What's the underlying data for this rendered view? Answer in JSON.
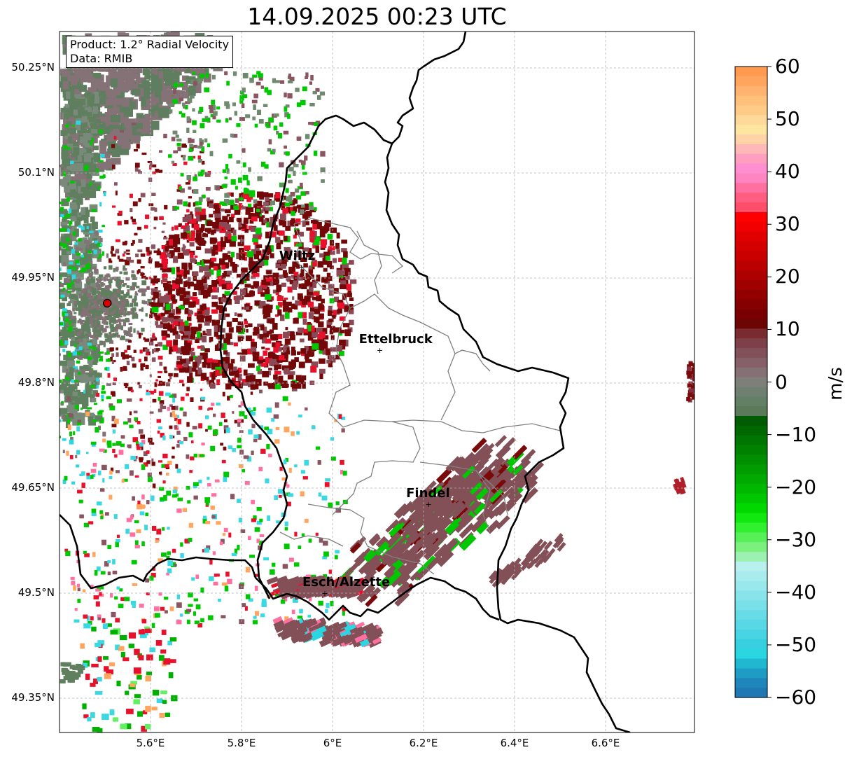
{
  "title": "14.09.2025 00:23 UTC",
  "info": {
    "product": "Product: 1.2° Radial Velocity",
    "data": "Data: RMIB"
  },
  "map": {
    "lat_ticks": [
      "50.25°N",
      "50.1°N",
      "49.95°N",
      "49.8°N",
      "49.65°N",
      "49.5°N",
      "49.35°N"
    ],
    "lon_ticks": [
      "5.6°E",
      "5.8°E",
      "6°E",
      "6.2°E",
      "6.4°E",
      "6.6°E"
    ],
    "radar_site": {
      "lat": 49.914,
      "lon": 5.505
    },
    "cities": [
      {
        "name": "Wiltz",
        "lat": 49.966,
        "lon": 5.932
      },
      {
        "name": "Ettelbruck",
        "lat": 49.847,
        "lon": 6.104
      },
      {
        "name": "Findel",
        "lat": 49.627,
        "lon": 6.211
      },
      {
        "name": "Esch/Alzette",
        "lat": 49.5,
        "lon": 5.983
      }
    ]
  },
  "colorbar": {
    "unit": "m/s",
    "ticks": [
      "60",
      "50",
      "40",
      "30",
      "20",
      "10",
      "0",
      "−10",
      "−20",
      "−30",
      "−40",
      "−50",
      "−60"
    ],
    "range": [
      -60,
      60
    ],
    "colors": {
      "strong_receding": "#e8000b",
      "weak_receding": "#7a0a0a",
      "near_zero_pos": "#8a5560",
      "near_zero_neg": "#5f7f5f",
      "approaching": "#00c800",
      "strong_approaching": "#2ad6e0",
      "extreme_approaching": "#1f77b4",
      "extreme_receding": "#ff9a50"
    }
  }
}
